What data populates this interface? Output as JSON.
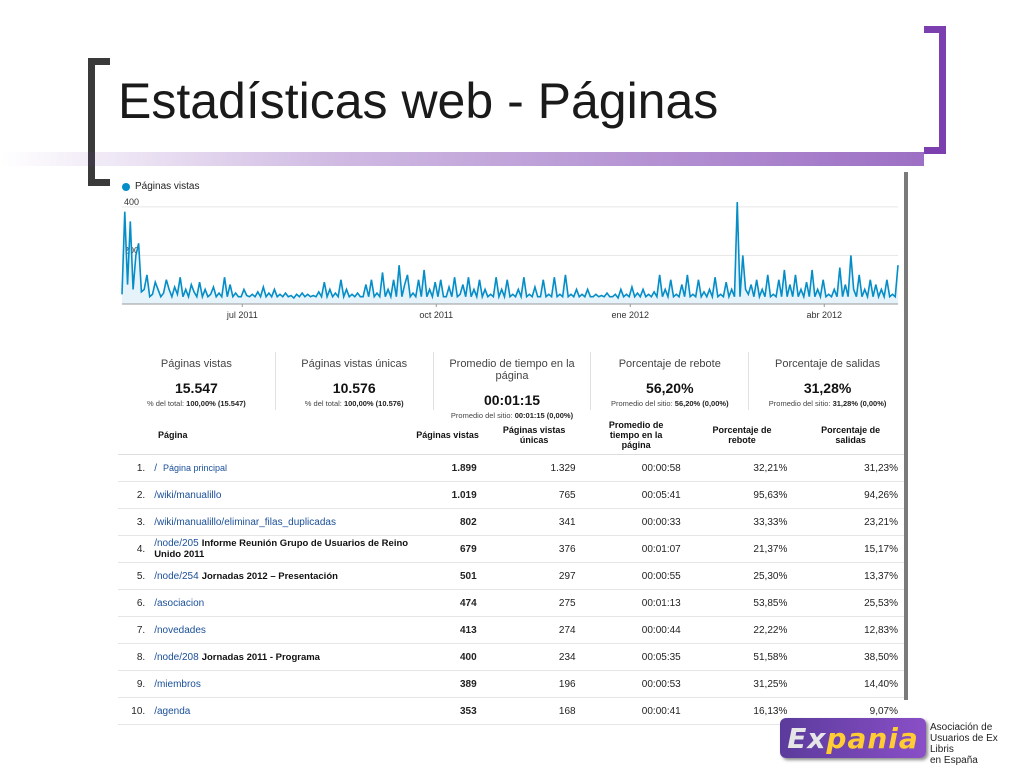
{
  "slide": {
    "title": "Estadísticas web - Páginas"
  },
  "colors": {
    "series": "#058dc7",
    "accent": "#7b3fb0"
  },
  "chart_data": {
    "type": "line",
    "legend": [
      "Páginas vistas"
    ],
    "x_ticks": [
      "jul 2011",
      "oct 2011",
      "ene 2012",
      "abr 2012"
    ],
    "y_ticks": [
      400,
      200
    ],
    "ylim": [
      0,
      420
    ],
    "series": [
      {
        "name": "Páginas vistas",
        "values": [
          40,
          380,
          80,
          340,
          60,
          200,
          250,
          50,
          60,
          120,
          30,
          40,
          90,
          60,
          30,
          45,
          100,
          60,
          30,
          70,
          40,
          110,
          30,
          60,
          30,
          80,
          50,
          30,
          90,
          30,
          60,
          30,
          40,
          70,
          30,
          45,
          30,
          110,
          30,
          80,
          30,
          45,
          30,
          30,
          60,
          35,
          30,
          40,
          30,
          50,
          30,
          70,
          30,
          45,
          30,
          60,
          30,
          40,
          30,
          45,
          30,
          35,
          25,
          40,
          30,
          45,
          30,
          40,
          30,
          35,
          30,
          50,
          30,
          90,
          30,
          60,
          30,
          45,
          30,
          100,
          30,
          60,
          30,
          40,
          30,
          45,
          30,
          30,
          80,
          30,
          100,
          30,
          45,
          30,
          130,
          30,
          60,
          30,
          100,
          30,
          160,
          30,
          80,
          120,
          30,
          45,
          30,
          100,
          30,
          140,
          30,
          60,
          30,
          90,
          30,
          100,
          30,
          30,
          70,
          30,
          110,
          30,
          40,
          80,
          30,
          110,
          30,
          60,
          30,
          100,
          30,
          60,
          30,
          40,
          30,
          110,
          30,
          60,
          30,
          100,
          30,
          40,
          30,
          60,
          30,
          110,
          30,
          40,
          30,
          70,
          30,
          30,
          100,
          30,
          40,
          30,
          110,
          30,
          40,
          30,
          120,
          30,
          40,
          30,
          60,
          30,
          40,
          30,
          60,
          30,
          30,
          40,
          30,
          35,
          30,
          45,
          30,
          30,
          40,
          25,
          60,
          30,
          40,
          30,
          70,
          30,
          45,
          30,
          60,
          30,
          40,
          30,
          50,
          30,
          120,
          30,
          60,
          30,
          100,
          30,
          40,
          30,
          80,
          30,
          120,
          30,
          40,
          30,
          100,
          30,
          50,
          30,
          60,
          30,
          110,
          30,
          40,
          30,
          90,
          30,
          60,
          30,
          420,
          30,
          200,
          60,
          40,
          80,
          30,
          100,
          30,
          60,
          30,
          120,
          30,
          40,
          30,
          100,
          30,
          140,
          30,
          80,
          30,
          120,
          30,
          60,
          30,
          90,
          30,
          140,
          30,
          60,
          30,
          100,
          30,
          40,
          30,
          60,
          30,
          150,
          30,
          80,
          30,
          200,
          60,
          30,
          120,
          30,
          60,
          30,
          100,
          30,
          80,
          30,
          60,
          30,
          100,
          30,
          40,
          30,
          160
        ]
      }
    ]
  },
  "summary": [
    {
      "label": "Páginas vistas",
      "value": "15.547",
      "sub_prefix": "% del total:",
      "sub_value": "100,00% (15.547)"
    },
    {
      "label": "Páginas vistas únicas",
      "value": "10.576",
      "sub_prefix": "% del total:",
      "sub_value": "100,00% (10.576)"
    },
    {
      "label": "Promedio de tiempo en la página",
      "value": "00:01:15",
      "sub_prefix": "Promedio del sitio:",
      "sub_value": "00:01:15 (0,00%)"
    },
    {
      "label": "Porcentaje de rebote",
      "value": "56,20%",
      "sub_prefix": "Promedio del sitio:",
      "sub_value": "56,20% (0,00%)"
    },
    {
      "label": "Porcentaje de salidas",
      "value": "31,28%",
      "sub_prefix": "Promedio del sitio:",
      "sub_value": "31,28% (0,00%)"
    }
  ],
  "table": {
    "headers": {
      "page": "Página",
      "views": "Páginas vistas",
      "unique": "Páginas vistas únicas",
      "avg_time": "Promedio de tiempo en la página",
      "bounce": "Porcentaje de rebote",
      "exits": "Porcentaje de salidas"
    },
    "rows": [
      {
        "idx": "1.",
        "path": "/",
        "title": "Página principal",
        "views": "1.899",
        "unique": "1.329",
        "time": "00:00:58",
        "bounce": "32,21%",
        "exits": "31,23%"
      },
      {
        "idx": "2.",
        "path": "/wiki/manualillo",
        "title": "",
        "views": "1.019",
        "unique": "765",
        "time": "00:05:41",
        "bounce": "95,63%",
        "exits": "94,26%"
      },
      {
        "idx": "3.",
        "path": "/wiki/manualillo/eliminar_filas_duplicadas",
        "title": "",
        "views": "802",
        "unique": "341",
        "time": "00:00:33",
        "bounce": "33,33%",
        "exits": "23,21%"
      },
      {
        "idx": "4.",
        "path": "/node/205",
        "title": "Informe Reunión Grupo de Usuarios de Reino Unido 2011",
        "views": "679",
        "unique": "376",
        "time": "00:01:07",
        "bounce": "21,37%",
        "exits": "15,17%"
      },
      {
        "idx": "5.",
        "path": "/node/254",
        "title": "Jornadas 2012 – Presentación",
        "views": "501",
        "unique": "297",
        "time": "00:00:55",
        "bounce": "25,30%",
        "exits": "13,37%"
      },
      {
        "idx": "6.",
        "path": "/asociacion",
        "title": "",
        "views": "474",
        "unique": "275",
        "time": "00:01:13",
        "bounce": "53,85%",
        "exits": "25,53%"
      },
      {
        "idx": "7.",
        "path": "/novedades",
        "title": "",
        "views": "413",
        "unique": "274",
        "time": "00:00:44",
        "bounce": "22,22%",
        "exits": "12,83%"
      },
      {
        "idx": "8.",
        "path": "/node/208",
        "title": "Jornadas 2011 - Programa",
        "views": "400",
        "unique": "234",
        "time": "00:05:35",
        "bounce": "51,58%",
        "exits": "38,50%"
      },
      {
        "idx": "9.",
        "path": "/miembros",
        "title": "",
        "views": "389",
        "unique": "196",
        "time": "00:00:53",
        "bounce": "31,25%",
        "exits": "14,40%"
      },
      {
        "idx": "10.",
        "path": "/agenda",
        "title": "",
        "views": "353",
        "unique": "168",
        "time": "00:00:41",
        "bounce": "16,13%",
        "exits": "9,07%"
      }
    ]
  },
  "logo": {
    "text_ex": "Ex",
    "text_rest": "pania",
    "caption_lines": [
      "Asociación de",
      "Usuarios de Ex Libris",
      "en España"
    ]
  }
}
